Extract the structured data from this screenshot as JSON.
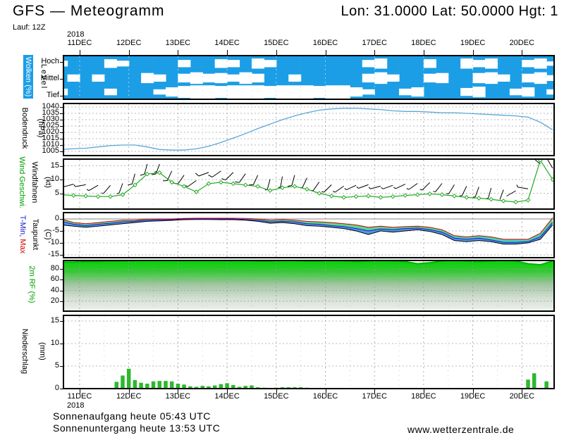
{
  "header": {
    "title": "GFS — Meteogramm",
    "coords": "Lon: 31.0000 Lat: 50.0000 Hgt: 1",
    "run_label": "Lauf: 12Z"
  },
  "footer": {
    "sunrise": "Sonnenaufgang heute 05:43 UTC",
    "sunset": "Sonnenuntergang heute 13:53 UTC",
    "site": "www.wetterzentrale.de"
  },
  "axis": {
    "year": "2018",
    "dates": [
      "11DEC",
      "12DEC",
      "13DEC",
      "14DEC",
      "15DEC",
      "16DEC",
      "17DEC",
      "18DEC",
      "19DEC",
      "20DEC"
    ],
    "day_offsets": [
      0,
      1,
      2,
      3,
      4,
      5,
      6,
      7,
      8,
      9
    ]
  },
  "colors": {
    "cloud_blue": "#1b9ee6",
    "pressure_line": "#5aa7d9",
    "wind_green": "#22aa22",
    "rh_top_green": "#00b400",
    "rh_bright_green": "#00d400",
    "precip_green": "#2db82d",
    "tmax_red": "#d40000",
    "tmin_blue": "#1a1acc",
    "dew_black": "#000000",
    "band_cyan": "#3ecfb4",
    "band_green": "#59d974",
    "band_blue": "#3b82e0",
    "grid_gray": "#999999"
  },
  "panels": {
    "clouds": {
      "label": "Wolken (%)",
      "sublabel": "Level",
      "ticks": [
        "Hoch",
        "Mittel",
        "Tief"
      ]
    },
    "pressure": {
      "label": "Bodendruck",
      "unit": "(hPa)",
      "ticks": [
        1040,
        1035,
        1030,
        1025,
        1020,
        1015,
        1010,
        1005
      ]
    },
    "wind": {
      "label": "Wind Geschwi.",
      "label2": "Windfahnen",
      "unit": "(kt)",
      "ticks": [
        15,
        10,
        5
      ]
    },
    "temp": {
      "label_min": "T-Min,",
      "label_max": "Max",
      "label2": "Taupunkt",
      "unit": "(C)",
      "ticks": [
        0,
        -5,
        -10,
        -15
      ]
    },
    "rh": {
      "label": "2m RF (%)",
      "ticks": [
        80,
        60,
        40,
        20
      ]
    },
    "precip": {
      "label": "Niederschlag",
      "unit": "(mm)",
      "ticks": [
        15,
        10,
        5,
        0
      ]
    }
  },
  "chart_data": [
    {
      "type": "heatmap",
      "name": "cloud-cover",
      "title": "Wolken (%)",
      "levels": [
        "Hoch",
        "Mittel",
        "Tief"
      ],
      "t0": -0.375,
      "dt": 0.25,
      "coverage": {
        "hoch": [
          0.6,
          1,
          1,
          1,
          0.4,
          0.6,
          1,
          1,
          1,
          1,
          0.5,
          1,
          1,
          0.4,
          0.5,
          1,
          0.3,
          0.5,
          1,
          1,
          1,
          1,
          1,
          1,
          1,
          0.5,
          0.3,
          1,
          1,
          1,
          0.4,
          1,
          1,
          0.3,
          0.5,
          0.3,
          1,
          1,
          0.5,
          0.3,
          0.7
        ],
        "mittel": [
          1,
          0.5,
          1,
          0.5,
          1,
          1,
          1,
          0.3,
          0.5,
          1,
          0.4,
          0.2,
          0.4,
          0.3,
          0.5,
          0.2,
          0.4,
          1,
          1,
          0.5,
          1,
          1,
          1,
          1,
          1,
          0.4,
          0.2,
          0.5,
          1,
          1,
          0.4,
          0.3,
          1,
          1,
          0.3,
          0.2,
          0.5,
          1,
          0.4,
          0.2,
          0.6
        ],
        "tief": [
          0.5,
          1,
          1,
          1,
          0.5,
          1,
          1,
          1,
          0.6,
          0.3,
          0.1,
          0,
          0,
          0.1,
          0,
          0,
          0,
          0.1,
          0,
          0,
          0,
          0.1,
          0,
          0,
          0.3,
          0.6,
          1,
          1,
          0.5,
          0.3,
          1,
          1,
          1,
          0.4,
          0.2,
          1,
          1,
          0.5,
          0.3,
          1,
          0.6
        ]
      }
    },
    {
      "type": "line",
      "name": "surface-pressure",
      "ylabel": "Bodendruck (hPa)",
      "ylim": [
        1002.5,
        1042.5
      ],
      "t0": -0.375,
      "dt": 0.25,
      "values": [
        1006.5,
        1007,
        1007.5,
        1008.5,
        1009.5,
        1010,
        1010,
        1008.5,
        1006.5,
        1006,
        1006,
        1007,
        1009,
        1012,
        1015.5,
        1019,
        1023,
        1026.5,
        1030,
        1033,
        1035.5,
        1037.5,
        1038.5,
        1039,
        1039,
        1038.5,
        1038,
        1037,
        1036.5,
        1036.5,
        1036,
        1035.5,
        1035.5,
        1035,
        1034.5,
        1034,
        1033.5,
        1033,
        1032,
        1028,
        1022
      ]
    },
    {
      "type": "line",
      "name": "wind",
      "ylabel": "Wind Geschwi. (kt)",
      "ylim": [
        0,
        18.5
      ],
      "t0": -0.375,
      "dt": 0.25,
      "speed_kt": [
        4.5,
        4.2,
        4,
        3.8,
        3.8,
        4.5,
        8,
        12,
        12.5,
        9,
        7.5,
        5.5,
        8.5,
        9,
        8.5,
        8,
        7.5,
        6,
        7,
        7.5,
        6.5,
        5,
        4,
        3.5,
        3.8,
        4,
        3.5,
        3.8,
        4.2,
        4.5,
        4.8,
        4.5,
        4,
        3.5,
        3.2,
        2.8,
        2.2,
        1.8,
        2.5,
        17,
        10
      ],
      "dir_deg_from": [
        250,
        255,
        260,
        240,
        220,
        200,
        195,
        195,
        200,
        205,
        215,
        235,
        250,
        235,
        225,
        215,
        205,
        195,
        190,
        195,
        205,
        215,
        225,
        235,
        245,
        250,
        255,
        250,
        245,
        235,
        225,
        218,
        212,
        206,
        200,
        196,
        200,
        240,
        280,
        310,
        330
      ]
    },
    {
      "type": "line",
      "name": "temperature-dewpoint",
      "ylabel": "T-Min, Max / Taupunkt (C)",
      "ylim": [
        -17.9,
        2.9
      ],
      "t0": -0.375,
      "dt": 0.25,
      "series": [
        {
          "name": "T-Max",
          "values": [
            0,
            -1.5,
            -2,
            -1.5,
            -1,
            -0.5,
            -0.5,
            0,
            0,
            0,
            0.2,
            0.3,
            0.3,
            0.3,
            0.3,
            0.2,
            0,
            -0.5,
            -0.3,
            -0.5,
            -1,
            -1.2,
            -1.5,
            -2,
            -2.5,
            -3.5,
            -3,
            -3.5,
            -3.2,
            -3,
            -3.5,
            -4.5,
            -7,
            -7.5,
            -7,
            -7.5,
            -8.5,
            -8.5,
            -8.5,
            -6,
            0.5
          ]
        },
        {
          "name": "T-Min",
          "values": [
            -1,
            -2.2,
            -2.8,
            -2.2,
            -1.8,
            -1.2,
            -1,
            -0.5,
            -0.3,
            -0.3,
            0,
            0,
            0,
            0,
            0,
            -0.2,
            -0.5,
            -1.2,
            -1,
            -1.2,
            -2,
            -2.2,
            -2.8,
            -3.2,
            -4,
            -5,
            -4.2,
            -4.5,
            -4,
            -3.8,
            -4.5,
            -5.5,
            -8,
            -8.5,
            -8,
            -8.8,
            -9.8,
            -9.8,
            -9.5,
            -7.5,
            -1.5
          ]
        },
        {
          "name": "Taupunkt",
          "values": [
            -2.5,
            -3,
            -3.5,
            -3,
            -2.5,
            -2,
            -1.5,
            -1,
            -0.8,
            -0.6,
            -0.3,
            -0.2,
            -0.2,
            -0.3,
            -0.3,
            -0.5,
            -1,
            -1.8,
            -1.5,
            -2,
            -2.8,
            -3,
            -3.5,
            -4,
            -5,
            -6.5,
            -5,
            -5.5,
            -5,
            -4.5,
            -5.2,
            -6.5,
            -9,
            -9.5,
            -9,
            -9.5,
            -10.5,
            -10.5,
            -10,
            -8.5,
            -2.5
          ]
        }
      ]
    },
    {
      "type": "area",
      "name": "relative-humidity-2m",
      "ylabel": "2m RF (%)",
      "ylim": [
        0,
        100
      ],
      "t0": -0.375,
      "dt": 0.25,
      "values": [
        93,
        93,
        94,
        94,
        95,
        95,
        96,
        96,
        97,
        98,
        97,
        96,
        97,
        97,
        96,
        96,
        95,
        95,
        96,
        96,
        95,
        95,
        96,
        95,
        94,
        95,
        96,
        95,
        94,
        90,
        92,
        95,
        96,
        95,
        94,
        95,
        96,
        95,
        90,
        88,
        95
      ]
    },
    {
      "type": "bar",
      "name": "precipitation",
      "ylabel": "Niederschlag (mm)",
      "ylim": [
        0,
        16.5
      ],
      "points_t_mm": [
        [
          0.75,
          1.5
        ],
        [
          0.875,
          2.9
        ],
        [
          1.0,
          4.4
        ],
        [
          1.125,
          1.9
        ],
        [
          1.25,
          1.3
        ],
        [
          1.375,
          1.1
        ],
        [
          1.5,
          1.6
        ],
        [
          1.625,
          1.7
        ],
        [
          1.75,
          1.7
        ],
        [
          1.875,
          1.6
        ],
        [
          2.0,
          1.1
        ],
        [
          2.125,
          0.9
        ],
        [
          2.25,
          0.5
        ],
        [
          2.375,
          0.4
        ],
        [
          2.5,
          0.6
        ],
        [
          2.625,
          0.5
        ],
        [
          2.75,
          0.7
        ],
        [
          2.875,
          1.0
        ],
        [
          3.0,
          1.2
        ],
        [
          3.125,
          0.8
        ],
        [
          3.25,
          0.4
        ],
        [
          3.375,
          0.6
        ],
        [
          3.5,
          0.7
        ],
        [
          3.625,
          0.3
        ],
        [
          3.75,
          0.2
        ],
        [
          4.0,
          0.2
        ],
        [
          4.125,
          0.3
        ],
        [
          4.25,
          0.3
        ],
        [
          4.375,
          0.3
        ],
        [
          4.5,
          0.3
        ],
        [
          4.625,
          0.2
        ],
        [
          4.75,
          0.1
        ],
        [
          4.875,
          0.1
        ],
        [
          5.0,
          0.1
        ],
        [
          5.125,
          0.1
        ],
        [
          9.125,
          2.0
        ],
        [
          9.25,
          3.4
        ],
        [
          9.5,
          1.6
        ]
      ]
    }
  ]
}
